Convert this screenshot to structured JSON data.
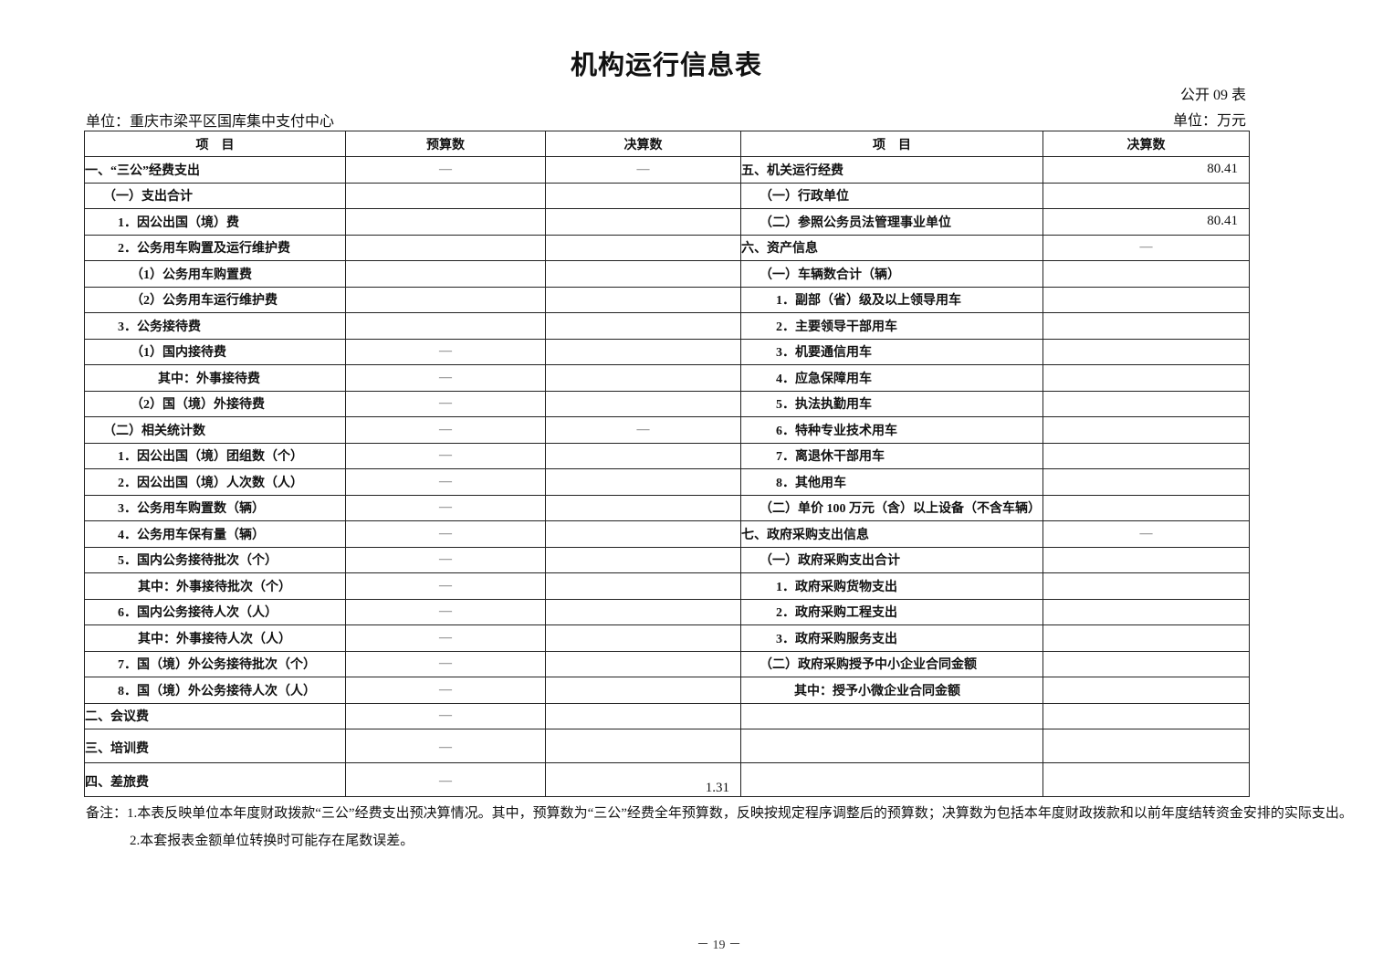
{
  "title": "机构运行信息表",
  "form_no": "公开 09 表",
  "unit_org": "单位：重庆市梁平区国库集中支付中心",
  "unit_money": "单位：万元",
  "headers": {
    "left_item": "项　目",
    "left_budget": "预算数",
    "left_final": "决算数",
    "right_item": "项　目",
    "right_final": "决算数"
  },
  "rows": [
    {
      "l": "一、“三公”经费支出",
      "li": 0,
      "lb": "—",
      "lf": "—",
      "r": "五、机关运行经费",
      "ri": 0,
      "rf": "80.41"
    },
    {
      "l": "（一）支出合计",
      "li": 1,
      "lb": "",
      "lf": "",
      "r": "（一）行政单位",
      "ri": 1,
      "rf": ""
    },
    {
      "l": "1．因公出国（境）费",
      "li": 2,
      "lb": "",
      "lf": "",
      "r": "（二）参照公务员法管理事业单位",
      "ri": 1,
      "rf": "80.41"
    },
    {
      "l": "2．公务用车购置及运行维护费",
      "li": 2,
      "lb": "",
      "lf": "",
      "r": "六、资产信息",
      "ri": 0,
      "rf": "—"
    },
    {
      "l": "（1）公务用车购置费",
      "li": 3,
      "lb": "",
      "lf": "",
      "r": "（一）车辆数合计（辆）",
      "ri": 1,
      "rf": ""
    },
    {
      "l": "（2）公务用车运行维护费",
      "li": 3,
      "lb": "",
      "lf": "",
      "r": "1．副部（省）级及以上领导用车",
      "ri": 2,
      "rf": ""
    },
    {
      "l": "3．公务接待费",
      "li": 2,
      "lb": "",
      "lf": "",
      "r": "2．主要领导干部用车",
      "ri": 2,
      "rf": ""
    },
    {
      "l": "（1）国内接待费",
      "li": 3,
      "lb": "—",
      "lf": "",
      "r": "3．机要通信用车",
      "ri": 2,
      "rf": ""
    },
    {
      "l": "其中：外事接待费",
      "li": 5,
      "lb": "—",
      "lf": "",
      "r": "4．应急保障用车",
      "ri": 2,
      "rf": ""
    },
    {
      "l": "（2）国（境）外接待费",
      "li": 3,
      "lb": "—",
      "lf": "",
      "r": "5．执法执勤用车",
      "ri": 2,
      "rf": ""
    },
    {
      "l": "（二）相关统计数",
      "li": 1,
      "lb": "—",
      "lf": "—",
      "r": "6．特种专业技术用车",
      "ri": 2,
      "rf": ""
    },
    {
      "l": "1．因公出国（境）团组数（个）",
      "li": 2,
      "lb": "—",
      "lf": "",
      "r": "7．离退休干部用车",
      "ri": 2,
      "rf": ""
    },
    {
      "l": "2．因公出国（境）人次数（人）",
      "li": 2,
      "lb": "—",
      "lf": "",
      "r": "8．其他用车",
      "ri": 2,
      "rf": ""
    },
    {
      "l": "3．公务用车购置数（辆）",
      "li": 2,
      "lb": "—",
      "lf": "",
      "r": "（二）单价 100 万元（含）以上设备（不含车辆）",
      "ri": 1,
      "rf": ""
    },
    {
      "l": "4．公务用车保有量（辆）",
      "li": 2,
      "lb": "—",
      "lf": "",
      "r": "七、政府采购支出信息",
      "ri": 0,
      "rf": "—"
    },
    {
      "l": "5．国内公务接待批次（个）",
      "li": 2,
      "lb": "—",
      "lf": "",
      "r": "（一）政府采购支出合计",
      "ri": 1,
      "rf": ""
    },
    {
      "l": "其中：外事接待批次（个）",
      "li": 4,
      "lb": "—",
      "lf": "",
      "r": "1．政府采购货物支出",
      "ri": 2,
      "rf": ""
    },
    {
      "l": "6．国内公务接待人次（人）",
      "li": 2,
      "lb": "—",
      "lf": "",
      "r": "2．政府采购工程支出",
      "ri": 2,
      "rf": ""
    },
    {
      "l": "其中：外事接待人次（人）",
      "li": 4,
      "lb": "—",
      "lf": "",
      "r": "3．政府采购服务支出",
      "ri": 2,
      "rf": ""
    },
    {
      "l": "7．国（境）外公务接待批次（个）",
      "li": 2,
      "lb": "—",
      "lf": "",
      "r": "（二）政府采购授予中小企业合同金额",
      "ri": 1,
      "rf": ""
    },
    {
      "l": "8．国（境）外公务接待人次（人）",
      "li": 2,
      "lb": "—",
      "lf": "",
      "r": "其中：授予小微企业合同金额",
      "ri": 4,
      "rf": ""
    },
    {
      "l": "二、会议费",
      "li": 0,
      "lb": "—",
      "lf": "",
      "r": "",
      "ri": 0,
      "rf": ""
    },
    {
      "l": "三、培训费",
      "li": 0,
      "lb": "—",
      "lf": "",
      "r": "",
      "ri": 0,
      "rf": ""
    },
    {
      "l": "四、差旅费",
      "li": 0,
      "lb": "—",
      "lf": "1.31",
      "r": "",
      "ri": 0,
      "rf": ""
    }
  ],
  "notes": [
    "备注：1.本表反映单位本年度财政拨款“三公”经费支出预决算情况。其中，预算数为“三公”经费全年预算数，反映按规定程序调整后的预算数；决算数为包括本年度财政拨款和以前年度结转资金安排的实际支出。",
    "2.本套报表金额单位转换时可能存在尾数误差。"
  ],
  "page_number": "－ 19 －"
}
